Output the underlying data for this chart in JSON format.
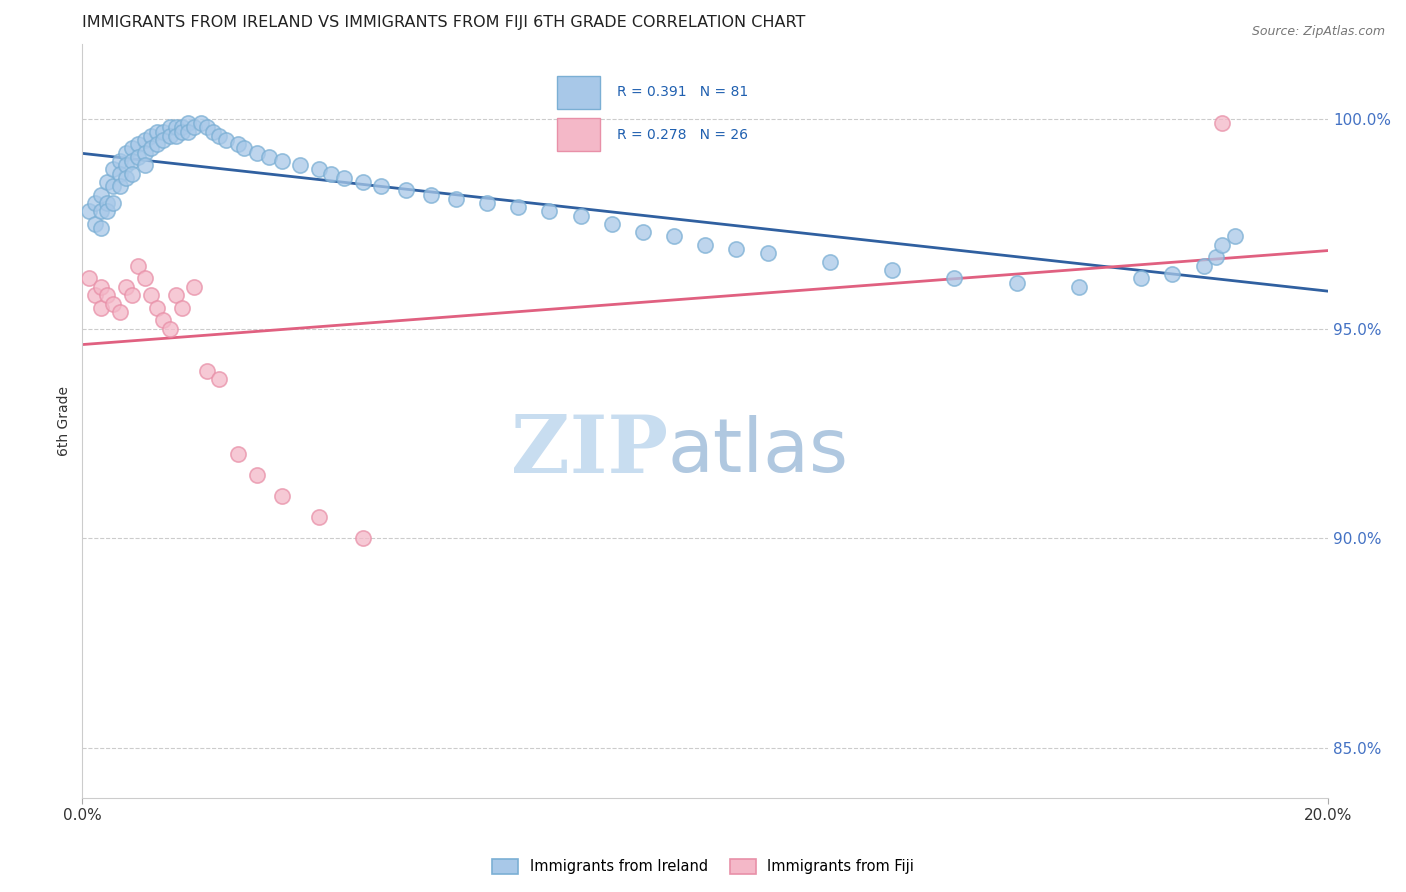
{
  "title": "IMMIGRANTS FROM IRELAND VS IMMIGRANTS FROM FIJI 6TH GRADE CORRELATION CHART",
  "source": "Source: ZipAtlas.com",
  "ylabel": "6th Grade",
  "xmin": 0.0,
  "xmax": 0.2,
  "ymin": 0.838,
  "ymax": 1.018,
  "ireland_R": 0.391,
  "ireland_N": 81,
  "fiji_R": 0.278,
  "fiji_N": 26,
  "ireland_color": "#a8c8e8",
  "ireland_edge_color": "#7bafd4",
  "fiji_color": "#f4b8c8",
  "fiji_edge_color": "#e890a8",
  "ireland_line_color": "#3060a0",
  "fiji_line_color": "#e06080",
  "right_tick_color": "#4472c4",
  "watermark_zip_color": "#c8ddf0",
  "watermark_atlas_color": "#b0c8e0",
  "ireland_scatter_x": [
    0.001,
    0.002,
    0.002,
    0.003,
    0.003,
    0.003,
    0.004,
    0.004,
    0.004,
    0.005,
    0.005,
    0.005,
    0.006,
    0.006,
    0.006,
    0.007,
    0.007,
    0.007,
    0.008,
    0.008,
    0.008,
    0.009,
    0.009,
    0.01,
    0.01,
    0.01,
    0.011,
    0.011,
    0.012,
    0.012,
    0.013,
    0.013,
    0.014,
    0.014,
    0.015,
    0.015,
    0.016,
    0.016,
    0.017,
    0.017,
    0.018,
    0.019,
    0.02,
    0.021,
    0.022,
    0.023,
    0.025,
    0.026,
    0.028,
    0.03,
    0.032,
    0.035,
    0.038,
    0.04,
    0.042,
    0.045,
    0.048,
    0.052,
    0.056,
    0.06,
    0.065,
    0.07,
    0.075,
    0.08,
    0.085,
    0.09,
    0.095,
    0.1,
    0.105,
    0.11,
    0.12,
    0.13,
    0.14,
    0.15,
    0.16,
    0.17,
    0.175,
    0.18,
    0.182,
    0.183,
    0.185
  ],
  "ireland_scatter_y": [
    0.978,
    0.98,
    0.975,
    0.982,
    0.978,
    0.974,
    0.985,
    0.98,
    0.978,
    0.988,
    0.984,
    0.98,
    0.99,
    0.987,
    0.984,
    0.992,
    0.989,
    0.986,
    0.993,
    0.99,
    0.987,
    0.994,
    0.991,
    0.995,
    0.992,
    0.989,
    0.996,
    0.993,
    0.997,
    0.994,
    0.997,
    0.995,
    0.998,
    0.996,
    0.998,
    0.996,
    0.998,
    0.997,
    0.999,
    0.997,
    0.998,
    0.999,
    0.998,
    0.997,
    0.996,
    0.995,
    0.994,
    0.993,
    0.992,
    0.991,
    0.99,
    0.989,
    0.988,
    0.987,
    0.986,
    0.985,
    0.984,
    0.983,
    0.982,
    0.981,
    0.98,
    0.979,
    0.978,
    0.977,
    0.975,
    0.973,
    0.972,
    0.97,
    0.969,
    0.968,
    0.966,
    0.964,
    0.962,
    0.961,
    0.96,
    0.962,
    0.963,
    0.965,
    0.967,
    0.97,
    0.972
  ],
  "fiji_scatter_x": [
    0.001,
    0.002,
    0.003,
    0.003,
    0.004,
    0.005,
    0.006,
    0.007,
    0.008,
    0.009,
    0.01,
    0.011,
    0.012,
    0.013,
    0.014,
    0.015,
    0.016,
    0.018,
    0.02,
    0.022,
    0.025,
    0.028,
    0.032,
    0.038,
    0.045,
    0.183
  ],
  "fiji_scatter_y": [
    0.962,
    0.958,
    0.96,
    0.955,
    0.958,
    0.956,
    0.954,
    0.96,
    0.958,
    0.965,
    0.962,
    0.958,
    0.955,
    0.952,
    0.95,
    0.958,
    0.955,
    0.96,
    0.94,
    0.938,
    0.92,
    0.915,
    0.91,
    0.905,
    0.9,
    0.999
  ]
}
